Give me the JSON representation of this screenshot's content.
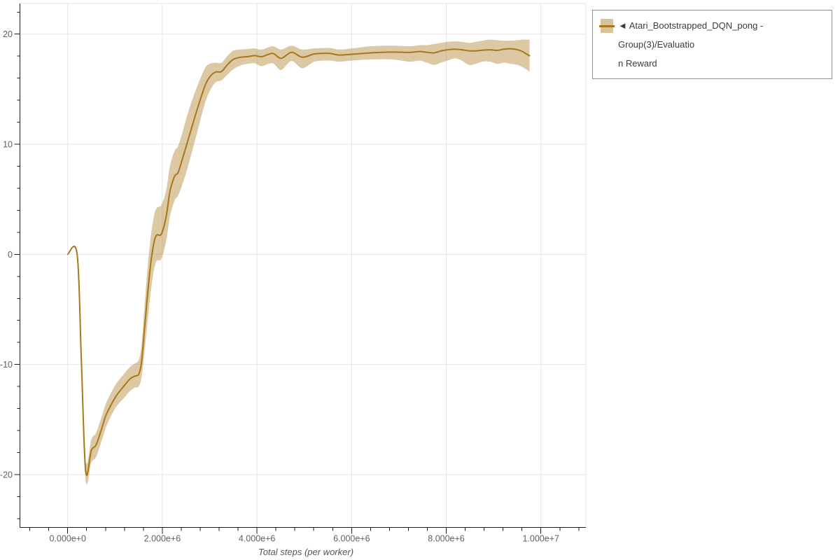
{
  "legend": {
    "items": [
      {
        "label": "◄ Atari_Bootstrapped_DQN_pong - Group(3)/Evaluation Reward",
        "label_lines": [
          "◄ Atari_Bootstrapped_DQN_pong - Group(3)/Evaluatio",
          "n Reward"
        ],
        "marker": "line-with-band-swatch",
        "line_color": "#a8771a",
        "band_color": "#d6c498"
      }
    ]
  },
  "chart_data": {
    "type": "line",
    "title": "",
    "xlabel": "Total steps (per worker)",
    "ylabel": "",
    "grid": true,
    "legend_position": "top-right-outside",
    "xlim": [
      -1009000,
      10951000
    ],
    "ylim": [
      -24.8,
      22.78
    ],
    "x_major_ticks": [
      0,
      2000000,
      4000000,
      6000000,
      8000000,
      10000000
    ],
    "x_major_labels": [
      "0.000e+0",
      "2.000e+6",
      "4.000e+6",
      "6.000e+6",
      "8.000e+6",
      "1.000e+7"
    ],
    "x_minor_step": 400000,
    "y_major_ticks": [
      -20,
      -10,
      0,
      10,
      20
    ],
    "y_major_labels": [
      "-20",
      "-10",
      "0",
      "10",
      "20"
    ],
    "y_minor_step": 2,
    "colors": {
      "line": "#a8771a",
      "band": "rgba(168,119,26,0.4)",
      "grid": "#e6e6e6",
      "outline": "#e6e6e6",
      "axis": "#1b1b1b",
      "tick_label": "#5f5f5f",
      "axis_label": "#555555",
      "legend_border": "#909090",
      "background": "#ffffff"
    },
    "series": [
      {
        "name": "Atari_Bootstrapped_DQN_pong - Group(3)/Evaluation Reward",
        "x": [
          0,
          200000,
          290000,
          380000,
          500000,
          600000,
          720000,
          810000,
          950000,
          1050000,
          1200000,
          1320000,
          1420000,
          1500000,
          1560000,
          1620000,
          1680000,
          1750000,
          1820000,
          1880000,
          1980000,
          2080000,
          2160000,
          2260000,
          2330000,
          2420000,
          2510000,
          2620000,
          2750000,
          2900000,
          3000000,
          3120000,
          3250000,
          3370000,
          3500000,
          3650000,
          3800000,
          3950000,
          4100000,
          4330000,
          4510000,
          4730000,
          4960000,
          5220000,
          5520000,
          5740000,
          6010000,
          6410000,
          6850000,
          7220000,
          7440000,
          7590000,
          7740000,
          7880000,
          8030000,
          8180000,
          8330000,
          8480000,
          8620000,
          8770000,
          8920000,
          9070000,
          9220000,
          9360000,
          9510000,
          9610000,
          9690000,
          9760000
        ],
        "mean": [
          0,
          0,
          -9.8,
          -19.7,
          -17.8,
          -17.3,
          -15.8,
          -14.6,
          -13.4,
          -12.7,
          -11.9,
          -11.3,
          -11.05,
          -10.9,
          -9.8,
          -6.9,
          -4.0,
          -1.0,
          1.0,
          1.75,
          1.85,
          3.4,
          5.7,
          7.1,
          7.4,
          8.6,
          9.9,
          11.5,
          13.35,
          15.3,
          16.1,
          16.55,
          16.6,
          17.2,
          17.7,
          17.9,
          17.95,
          18.05,
          17.95,
          18.25,
          17.8,
          18.35,
          17.9,
          18.2,
          18.25,
          18.1,
          18.17,
          18.3,
          18.37,
          18.34,
          18.42,
          18.35,
          18.3,
          18.46,
          18.58,
          18.63,
          18.58,
          18.48,
          18.48,
          18.54,
          18.58,
          18.52,
          18.63,
          18.67,
          18.58,
          18.42,
          18.21,
          18.04
        ],
        "lower": [
          0,
          0,
          -10.3,
          -20.5,
          -18.9,
          -18.4,
          -16.9,
          -15.7,
          -14.4,
          -13.7,
          -13.0,
          -12.4,
          -12.1,
          -12.0,
          -11.2,
          -9.0,
          -6.5,
          -3.6,
          -1.5,
          -0.6,
          -0.4,
          1.2,
          3.4,
          4.9,
          5.3,
          6.3,
          7.5,
          9.2,
          11.3,
          13.7,
          14.8,
          15.6,
          15.8,
          16.3,
          16.8,
          17.15,
          17.3,
          17.35,
          17.1,
          17.35,
          16.75,
          17.55,
          16.9,
          17.5,
          17.6,
          17.5,
          17.6,
          17.7,
          17.7,
          17.5,
          17.6,
          17.4,
          17.2,
          17.4,
          17.6,
          17.8,
          17.6,
          17.2,
          17.3,
          17.5,
          17.5,
          17.3,
          17.4,
          17.3,
          17.2,
          17.0,
          16.8,
          16.6
        ],
        "upper": [
          0,
          0,
          -9.3,
          -18.7,
          -16.8,
          -16.2,
          -14.7,
          -13.5,
          -12.3,
          -11.6,
          -10.8,
          -10.2,
          -9.9,
          -9.6,
          -8.2,
          -4.9,
          -1.6,
          1.4,
          3.4,
          4.2,
          4.5,
          5.8,
          8.0,
          9.4,
          9.8,
          11.0,
          12.4,
          13.9,
          15.4,
          16.9,
          17.3,
          17.4,
          17.4,
          18.0,
          18.5,
          18.6,
          18.65,
          18.7,
          18.6,
          18.9,
          18.6,
          18.95,
          18.6,
          18.7,
          18.75,
          18.6,
          18.7,
          18.9,
          18.95,
          18.9,
          19.0,
          19.0,
          19.1,
          19.2,
          19.3,
          19.35,
          19.3,
          19.2,
          19.3,
          19.4,
          19.5,
          19.45,
          19.4,
          19.4,
          19.45,
          19.5,
          19.5,
          19.5
        ]
      }
    ]
  }
}
